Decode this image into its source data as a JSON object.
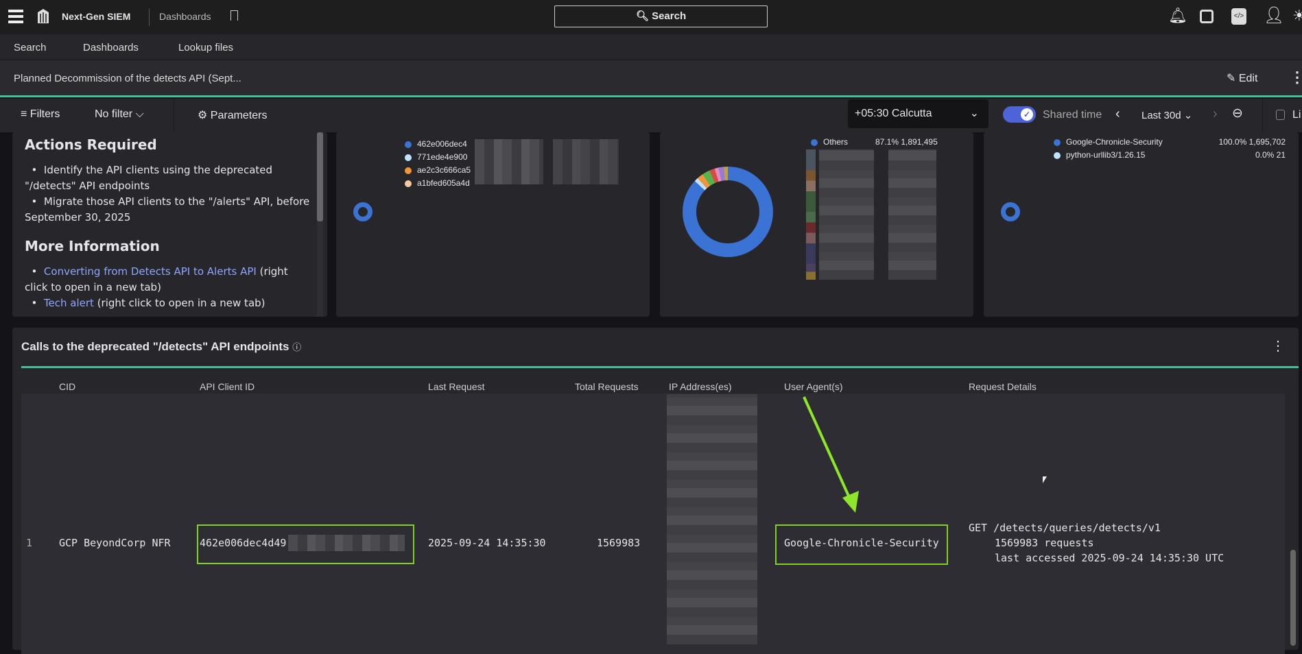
{
  "topbar": {
    "app_name": "Next-Gen SIEM",
    "section": "Dashboards",
    "search_label": "Search"
  },
  "nav": {
    "items": [
      "Search",
      "Dashboards",
      "Lookup files"
    ]
  },
  "dashboard": {
    "title": "Planned Decommission of the detects API (Sept...",
    "edit_label": "Edit"
  },
  "filters": {
    "filters_label": "Filters",
    "filter_value": "No filter",
    "parameters_label": "Parameters",
    "timezone": "+05:30 Calcutta",
    "shared_time_label": "Shared time",
    "shared_time_on": true,
    "time_range": "Last 30d",
    "live_label": "Li"
  },
  "text_panel": {
    "h1": "Actions Required",
    "items1": [
      "Identify the API clients using the deprecated \"/detects\" API endpoints",
      "Migrate those API clients to the \"/alerts\" API, before September 30, 2025"
    ],
    "h2": "More Information",
    "links": [
      {
        "link": "Converting from Detects API to Alerts API",
        "suffix": " (right click to open in a new tab)"
      },
      {
        "link": "Tech alert",
        "suffix": " (right click to open in a new tab)"
      }
    ]
  },
  "panel_clients": {
    "legend": [
      {
        "label": "462e006dec4",
        "color": "#3a73d4"
      },
      {
        "label": "771ede4e900",
        "color": "#bfe3ff"
      },
      {
        "label": "ae2c3c666ca5",
        "color": "#f0963a"
      },
      {
        "label": "a1bfed605a4d",
        "color": "#f9c9a0"
      }
    ]
  },
  "panel_donut": {
    "legend": [
      {
        "label": "Others",
        "pct": "87.1%",
        "value": "1,891,495",
        "color": "#3a73d4"
      }
    ]
  },
  "panel_agents": {
    "legend": [
      {
        "label": "Google-Chronicle-Security",
        "pct": "100.0%",
        "value": "1,695,702",
        "color": "#3a73d4"
      },
      {
        "label": "python-urllib3/1.26.15",
        "pct": "0.0%",
        "value": "21",
        "color": "#bfe3ff"
      }
    ]
  },
  "table": {
    "title": "Calls to the deprecated \"/detects\" API endpoints",
    "columns": [
      "CID",
      "API Client ID",
      "Last Request",
      "Total Requests",
      "IP Address(es)",
      "User Agent(s)",
      "Request Details"
    ],
    "rows": [
      {
        "index": "1",
        "cid": "GCP BeyondCorp NFR",
        "client_id": "462e006dec4d49",
        "last_request": "2025-09-24 14:35:30",
        "total": "1569983",
        "user_agent": "Google-Chronicle-Security",
        "details": [
          "GET /detects/queries/detects/v1",
          "1569983 requests",
          "last accessed 2025-09-24 14:35:30 UTC"
        ]
      }
    ]
  },
  "colors": {
    "accent": "#3fbf9a",
    "highlight": "#7ed321",
    "link": "#8fa6ff",
    "toggle": "#4f63d8"
  }
}
